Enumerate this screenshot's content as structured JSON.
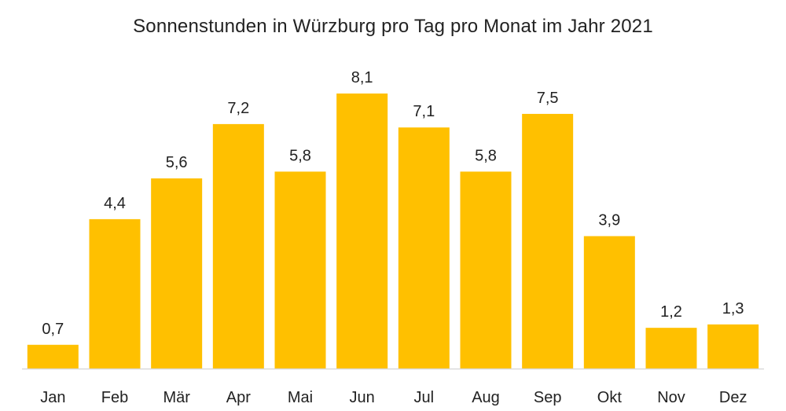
{
  "chart_data": {
    "type": "bar",
    "title": "Sonnenstunden in Würzburg pro Tag pro Monat im Jahr 2021",
    "xlabel": "",
    "ylabel": "",
    "categories": [
      "Jan",
      "Feb",
      "Mär",
      "Apr",
      "Mai",
      "Jun",
      "Jul",
      "Aug",
      "Sep",
      "Okt",
      "Nov",
      "Dez"
    ],
    "values": [
      0.7,
      4.4,
      5.6,
      7.2,
      5.8,
      8.1,
      7.1,
      5.8,
      7.5,
      3.9,
      1.2,
      1.3
    ],
    "value_labels": [
      "0,7",
      "4,4",
      "5,6",
      "7,2",
      "5,8",
      "8,1",
      "7,1",
      "5,8",
      "7,5",
      "3,9",
      "1,2",
      "1,3"
    ],
    "ylim": [
      0,
      8.1
    ],
    "grid": false,
    "legend": "none",
    "bar_color": "#FFC000",
    "axis_color": "#D9D9D9"
  }
}
